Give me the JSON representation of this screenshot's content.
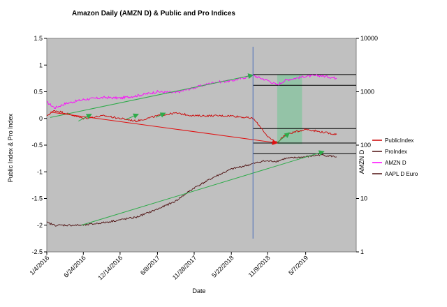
{
  "chart_data": {
    "type": "line",
    "title": "Amazon Daily (AMZN D) & Public and Pro Indices",
    "xlabel": "Date",
    "ylabel": "Public Index & Pro Index",
    "y2label": "AMZN D",
    "ylim": [
      -2.5,
      1.5
    ],
    "y2lim": [
      1,
      10000
    ],
    "y2_scale": "log",
    "y_ticks": [
      "1.5",
      "1",
      "0.5",
      "0",
      "-0.5",
      "-1",
      "-1.5",
      "-2",
      "-2.5"
    ],
    "y2_ticks": [
      "10000",
      "1000",
      "100",
      "10",
      "1"
    ],
    "x_ticks": [
      "1/4/2016",
      "6/24/2016",
      "12/14/2016",
      "6/8/2017",
      "11/28/2017",
      "5/22/2018",
      "11/9/2018",
      "5/7/2019"
    ],
    "grid": false,
    "legend_position": "right",
    "legend": [
      "PublicIndex",
      "ProIndex",
      "AMZN D",
      "AAPL D Euro"
    ],
    "colors": {
      "plot_bg": "#c0c0c0",
      "public_index": "#cc0000",
      "pro_index": "#4d0f0f",
      "amzn_d": "#ff00ff",
      "trend_green": "#2eab4a",
      "trend_red": "#e01010",
      "vline": "#4a6fb8",
      "highlight": "#8fc3a4"
    },
    "series": [
      {
        "name": "AMZN D",
        "axis": "right",
        "x": [
          "2016-01-04",
          "2016-02-10",
          "2016-04-01",
          "2016-06-24",
          "2016-10-01",
          "2016-12-14",
          "2017-03-01",
          "2017-06-08",
          "2017-09-01",
          "2017-11-28",
          "2018-03-01",
          "2018-05-22",
          "2018-09-01",
          "2018-10-15",
          "2018-11-09",
          "2018-12-24",
          "2019-02-01",
          "2019-05-07",
          "2019-07-15",
          "2019-09-30"
        ],
        "values": [
          640,
          500,
          600,
          715,
          780,
          760,
          840,
          1000,
          960,
          1190,
          1500,
          1600,
          2020,
          1750,
          1640,
          1340,
          1650,
          1950,
          2010,
          1790
        ]
      },
      {
        "name": "PublicIndex",
        "axis": "left",
        "x": [
          "2016-01-04",
          "2016-02-10",
          "2016-04-01",
          "2016-06-24",
          "2016-10-01",
          "2016-12-14",
          "2017-03-01",
          "2017-06-08",
          "2017-09-01",
          "2017-11-28",
          "2018-03-01",
          "2018-05-22",
          "2018-09-01",
          "2018-10-15",
          "2018-11-09",
          "2018-12-24",
          "2019-02-01",
          "2019-05-07",
          "2019-07-15",
          "2019-09-30"
        ],
        "values": [
          0.05,
          0.15,
          0.1,
          0.0,
          0.05,
          0.0,
          -0.05,
          0.05,
          0.1,
          0.05,
          0.05,
          0.05,
          0.0,
          -0.2,
          -0.35,
          -0.45,
          -0.3,
          -0.2,
          -0.25,
          -0.3
        ]
      },
      {
        "name": "ProIndex",
        "axis": "left",
        "x": [
          "2016-01-04",
          "2016-02-10",
          "2016-04-01",
          "2016-06-24",
          "2016-10-01",
          "2016-12-14",
          "2017-03-01",
          "2017-06-08",
          "2017-09-01",
          "2017-11-28",
          "2018-03-01",
          "2018-05-22",
          "2018-09-01",
          "2018-10-15",
          "2018-11-09",
          "2018-12-24",
          "2019-02-01",
          "2019-05-07",
          "2019-07-15",
          "2019-09-30"
        ],
        "values": [
          -1.95,
          -2.0,
          -2.0,
          -2.0,
          -1.95,
          -1.9,
          -1.85,
          -1.7,
          -1.55,
          -1.3,
          -1.1,
          -0.95,
          -0.85,
          -0.8,
          -0.8,
          -0.8,
          -0.75,
          -0.72,
          -0.68,
          -0.72
        ]
      }
    ],
    "x_range": [
      "2016-01-04",
      "2019-12-31"
    ],
    "trend_lines": [
      {
        "color": "trend_green",
        "from": {
          "series": "AMZN D",
          "x": "2016-01-20",
          "y": 330
        },
        "to": {
          "series": "AMZN D",
          "x": "2018-09-01",
          "y": 2050
        }
      },
      {
        "color": "trend_green",
        "from": {
          "series": "ProIndex",
          "x": "2016-06-15",
          "y": -2.0
        },
        "to": {
          "series": "ProIndex",
          "x": "2019-08-01",
          "y": -0.62
        }
      },
      {
        "color": "trend_red",
        "from": {
          "series": "PublicIndex",
          "x": "2016-01-20",
          "y": 0.12
        },
        "to": {
          "series": "PublicIndex",
          "x": "2018-12-24",
          "y": -0.46
        }
      },
      {
        "color": "trend_green",
        "from": {
          "series": "PublicIndex",
          "x": "2016-06-01",
          "y": -0.05
        },
        "to": {
          "series": "PublicIndex",
          "x": "2016-08-01",
          "y": 0.08
        }
      },
      {
        "color": "trend_green",
        "from": {
          "series": "PublicIndex",
          "x": "2017-01-10",
          "y": -0.02
        },
        "to": {
          "series": "PublicIndex",
          "x": "2017-03-10",
          "y": 0.08
        }
      },
      {
        "color": "trend_green",
        "from": {
          "series": "PublicIndex",
          "x": "2017-06-01",
          "y": 0.02
        },
        "to": {
          "series": "PublicIndex",
          "x": "2017-07-15",
          "y": 0.1
        }
      },
      {
        "color": "trend_green",
        "from": {
          "series": "PublicIndex",
          "x": "2018-12-24",
          "y": -0.45
        },
        "to": {
          "series": "PublicIndex",
          "x": "2019-02-20",
          "y": -0.27
        }
      }
    ],
    "vertical_line": {
      "x": "2018-09-01"
    },
    "highlight_band": {
      "x_from": "2018-12-24",
      "x_to": "2019-04-20",
      "y_from": -0.48,
      "y_to": 0.82
    },
    "horizontal_lines": [
      {
        "axis": "right",
        "y": 2100,
        "x_from": "2018-09-01",
        "x_to": "2019-12-31"
      },
      {
        "axis": "right",
        "y": 1320,
        "x_from": "2018-09-01",
        "x_to": "2019-12-31"
      },
      {
        "axis": "left",
        "y": -0.19,
        "x_from": "2018-09-01",
        "x_to": "2019-12-31"
      },
      {
        "axis": "left",
        "y": -0.46,
        "x_from": "2018-09-01",
        "x_to": "2019-12-31"
      },
      {
        "axis": "left",
        "y": -0.66,
        "x_from": "2018-09-01",
        "x_to": "2019-12-31"
      }
    ]
  }
}
